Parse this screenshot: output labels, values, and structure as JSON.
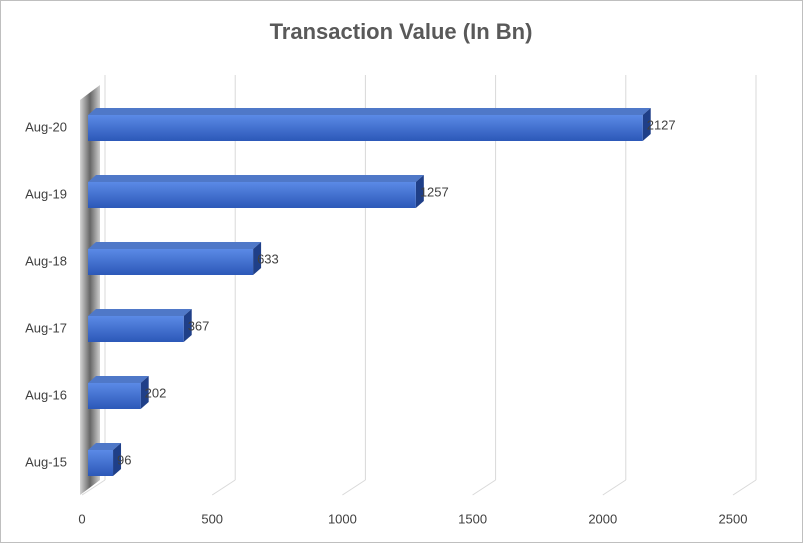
{
  "chart_data": {
    "type": "bar3d_horizontal",
    "title": "Transaction Value (In Bn)",
    "categories": [
      "Aug-15",
      "Aug-16",
      "Aug-17",
      "Aug-18",
      "Aug-19",
      "Aug-20"
    ],
    "values": [
      96,
      202,
      367,
      633,
      1257,
      2127
    ],
    "color": "#3a6ad0",
    "xlim": [
      0,
      2500
    ],
    "xticks": [
      0,
      500,
      1000,
      1500,
      2000,
      2500
    ],
    "grid": true
  }
}
